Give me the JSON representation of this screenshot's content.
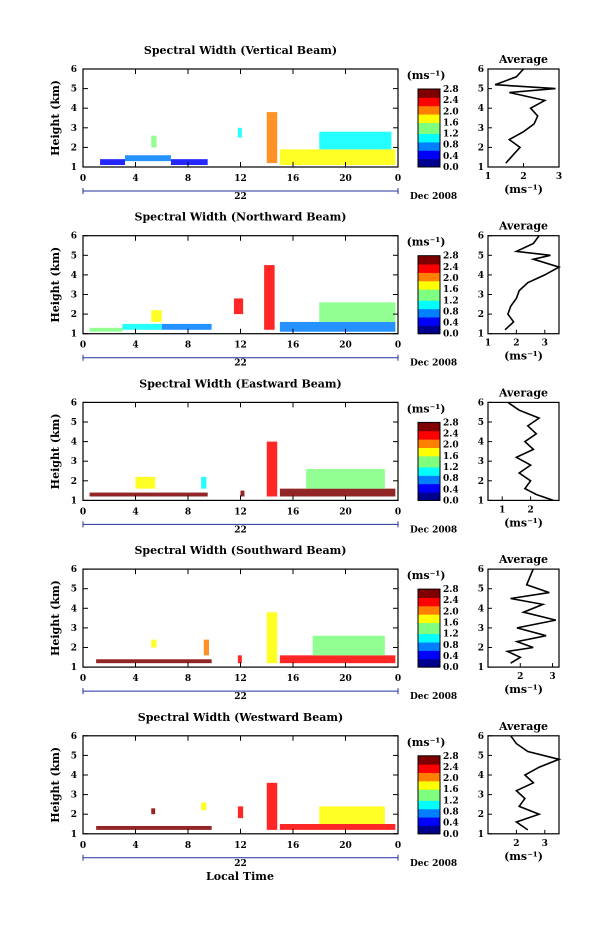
{
  "figure": {
    "xlabel": "Local Time",
    "date_label": "Dec 2008",
    "day_label": "22",
    "x_ticks": [
      "0",
      "4",
      "8",
      "12",
      "16",
      "20",
      "0"
    ],
    "y_ticks": [
      "1",
      "2",
      "3",
      "4",
      "5",
      "6"
    ],
    "ylabel": "Height (km)",
    "cbar_unit": "(ms⁻¹)",
    "cbar_ticks": [
      "0.0",
      "0.4",
      "0.8",
      "1.2",
      "1.6",
      "2.0",
      "2.4",
      "2.8"
    ],
    "avg_title": "Average",
    "avg_xlabel": "(ms⁻¹)",
    "colormap": [
      "#00008f",
      "#0000ff",
      "#007fff",
      "#00ffff",
      "#7fff7f",
      "#ffff00",
      "#ff7f00",
      "#ff0000",
      "#7f0000"
    ]
  },
  "chart_data": [
    {
      "type": "heatmap",
      "title": "Spectral Width (Vertical Beam)",
      "xlabel": "Local Time",
      "ylabel": "Height (km)",
      "xlim": [
        0,
        24
      ],
      "ylim": [
        1,
        6
      ],
      "zlim": [
        0,
        2.8
      ],
      "colorbar_label": "(ms⁻¹)",
      "blocks": [
        {
          "t": [
            1.3,
            3.2
          ],
          "h": [
            1.1,
            1.4
          ],
          "v": 0.5
        },
        {
          "t": [
            3.2,
            6.7
          ],
          "h": [
            1.3,
            1.6
          ],
          "v": 0.9
        },
        {
          "t": [
            6.7,
            9.5
          ],
          "h": [
            1.1,
            1.4
          ],
          "v": 0.5
        },
        {
          "t": [
            5.2,
            5.6
          ],
          "h": [
            2.0,
            2.6
          ],
          "v": 1.3
        },
        {
          "t": [
            11.8,
            12.1
          ],
          "h": [
            2.5,
            3.0
          ],
          "v": 1.2
        },
        {
          "t": [
            14.0,
            14.8
          ],
          "h": [
            1.2,
            3.8
          ],
          "v": 2.0
        },
        {
          "t": [
            15.0,
            23.8
          ],
          "h": [
            1.1,
            1.9
          ],
          "v": 1.6
        },
        {
          "t": [
            18.0,
            23.5
          ],
          "h": [
            1.9,
            2.8
          ],
          "v": 1.2
        }
      ],
      "average": {
        "xlim": [
          1,
          3
        ],
        "x_ticks": [
          "1",
          "2",
          "3"
        ],
        "height": [
          1.2,
          1.6,
          2.0,
          2.4,
          2.8,
          3.2,
          3.6,
          4.0,
          4.4,
          4.8,
          5.0,
          5.2,
          5.6,
          6.0
        ],
        "value": [
          1.5,
          1.7,
          1.9,
          1.6,
          2.0,
          2.3,
          2.4,
          2.2,
          2.6,
          1.6,
          2.9,
          1.2,
          1.8,
          2.0
        ]
      }
    },
    {
      "type": "heatmap",
      "title": "Spectral Width (Northward Beam)",
      "xlabel": "Local Time",
      "ylabel": "Height (km)",
      "xlim": [
        0,
        24
      ],
      "ylim": [
        1,
        6
      ],
      "zlim": [
        0,
        2.8
      ],
      "colorbar_label": "(ms⁻¹)",
      "blocks": [
        {
          "t": [
            0.5,
            3.0
          ],
          "h": [
            1.1,
            1.3
          ],
          "v": 1.4
        },
        {
          "t": [
            3.0,
            6.0
          ],
          "h": [
            1.2,
            1.5
          ],
          "v": 1.0
        },
        {
          "t": [
            5.2,
            6.0
          ],
          "h": [
            1.6,
            2.2
          ],
          "v": 1.8
        },
        {
          "t": [
            6.0,
            9.8
          ],
          "h": [
            1.2,
            1.5
          ],
          "v": 0.9
        },
        {
          "t": [
            11.5,
            12.2
          ],
          "h": [
            2.0,
            2.8
          ],
          "v": 2.2
        },
        {
          "t": [
            13.8,
            14.6
          ],
          "h": [
            1.2,
            4.5
          ],
          "v": 2.4
        },
        {
          "t": [
            15.0,
            23.8
          ],
          "h": [
            1.1,
            1.6
          ],
          "v": 0.7
        },
        {
          "t": [
            18.0,
            23.8
          ],
          "h": [
            1.6,
            2.6
          ],
          "v": 1.5
        }
      ],
      "average": {
        "xlim": [
          1,
          3.5
        ],
        "x_ticks": [
          "1",
          "2",
          "3"
        ],
        "height": [
          1.2,
          1.6,
          2.0,
          2.4,
          2.8,
          3.2,
          3.6,
          4.0,
          4.4,
          4.8,
          5.0,
          5.2,
          5.6,
          6.0
        ],
        "value": [
          1.6,
          1.9,
          1.7,
          1.8,
          2.0,
          2.1,
          2.4,
          3.0,
          3.5,
          2.6,
          3.2,
          2.0,
          2.6,
          2.8
        ]
      }
    },
    {
      "type": "heatmap",
      "title": "Spectral Width (Eastward Beam)",
      "xlabel": "Local Time",
      "ylabel": "Height (km)",
      "xlim": [
        0,
        24
      ],
      "ylim": [
        1,
        6
      ],
      "zlim": [
        0,
        2.8
      ],
      "colorbar_label": "(ms⁻¹)",
      "blocks": [
        {
          "t": [
            0.5,
            9.5
          ],
          "h": [
            1.2,
            1.4
          ],
          "v": 2.5
        },
        {
          "t": [
            4.0,
            5.5
          ],
          "h": [
            1.6,
            2.2
          ],
          "v": 1.6
        },
        {
          "t": [
            9.0,
            9.4
          ],
          "h": [
            1.6,
            2.2
          ],
          "v": 1.2
        },
        {
          "t": [
            12.0,
            12.3
          ],
          "h": [
            1.2,
            1.5
          ],
          "v": 2.6
        },
        {
          "t": [
            14.0,
            14.8
          ],
          "h": [
            1.2,
            4.0
          ],
          "v": 2.3
        },
        {
          "t": [
            15.0,
            23.8
          ],
          "h": [
            1.2,
            1.6
          ],
          "v": 2.5
        },
        {
          "t": [
            17.0,
            23.0
          ],
          "h": [
            1.6,
            2.6
          ],
          "v": 1.3
        }
      ],
      "average": {
        "xlim": [
          0.5,
          3
        ],
        "x_ticks": [
          "1",
          "2"
        ],
        "height": [
          1.0,
          1.3,
          1.6,
          2.0,
          2.4,
          2.8,
          3.2,
          3.6,
          4.0,
          4.4,
          4.8,
          5.2,
          5.6,
          6.0
        ],
        "value": [
          2.8,
          2.2,
          1.8,
          2.0,
          1.6,
          2.0,
          1.5,
          2.1,
          1.8,
          2.2,
          1.9,
          2.3,
          1.6,
          1.2
        ]
      }
    },
    {
      "type": "heatmap",
      "title": "Spectral Width (Southward Beam)",
      "xlabel": "Local Time",
      "ylabel": "Height (km)",
      "xlim": [
        0,
        24
      ],
      "ylim": [
        1,
        6
      ],
      "zlim": [
        0,
        2.8
      ],
      "colorbar_label": "(ms⁻¹)",
      "blocks": [
        {
          "t": [
            1.0,
            9.8
          ],
          "h": [
            1.2,
            1.4
          ],
          "v": 2.5
        },
        {
          "t": [
            5.2,
            5.6
          ],
          "h": [
            2.0,
            2.4
          ],
          "v": 1.7
        },
        {
          "t": [
            9.2,
            9.6
          ],
          "h": [
            1.6,
            2.4
          ],
          "v": 1.9
        },
        {
          "t": [
            11.8,
            12.1
          ],
          "h": [
            1.2,
            1.6
          ],
          "v": 2.4
        },
        {
          "t": [
            14.0,
            14.8
          ],
          "h": [
            1.2,
            3.8
          ],
          "v": 1.8
        },
        {
          "t": [
            15.0,
            23.8
          ],
          "h": [
            1.2,
            1.6
          ],
          "v": 2.2
        },
        {
          "t": [
            17.5,
            23.0
          ],
          "h": [
            1.6,
            2.6
          ],
          "v": 1.4
        }
      ],
      "average": {
        "xlim": [
          1,
          3.2
        ],
        "x_ticks": [
          "2",
          "3"
        ],
        "height": [
          1.2,
          1.5,
          1.8,
          2.0,
          2.3,
          2.6,
          3.0,
          3.4,
          3.8,
          4.2,
          4.5,
          4.8,
          5.2,
          6.0
        ],
        "value": [
          1.7,
          2.0,
          1.6,
          2.4,
          1.9,
          2.8,
          1.9,
          3.1,
          2.1,
          2.7,
          1.7,
          2.9,
          2.2,
          2.4
        ]
      }
    },
    {
      "type": "heatmap",
      "title": "Spectral Width (Westward Beam)",
      "xlabel": "Local Time",
      "ylabel": "Height (km)",
      "xlim": [
        0,
        24
      ],
      "ylim": [
        1,
        6
      ],
      "zlim": [
        0,
        2.8
      ],
      "colorbar_label": "(ms⁻¹)",
      "blocks": [
        {
          "t": [
            1.0,
            9.8
          ],
          "h": [
            1.2,
            1.4
          ],
          "v": 2.5
        },
        {
          "t": [
            5.2,
            5.5
          ],
          "h": [
            2.0,
            2.3
          ],
          "v": 2.7
        },
        {
          "t": [
            9.0,
            9.4
          ],
          "h": [
            2.2,
            2.6
          ],
          "v": 1.6
        },
        {
          "t": [
            11.8,
            12.2
          ],
          "h": [
            1.8,
            2.4
          ],
          "v": 2.4
        },
        {
          "t": [
            14.0,
            14.8
          ],
          "h": [
            1.2,
            3.6
          ],
          "v": 2.2
        },
        {
          "t": [
            15.0,
            23.8
          ],
          "h": [
            1.2,
            1.5
          ],
          "v": 2.4
        },
        {
          "t": [
            18.0,
            23.0
          ],
          "h": [
            1.5,
            2.4
          ],
          "v": 1.6
        }
      ],
      "average": {
        "xlim": [
          1,
          3.5
        ],
        "x_ticks": [
          "2",
          "3"
        ],
        "height": [
          1.2,
          1.6,
          2.0,
          2.4,
          2.8,
          3.2,
          3.6,
          4.0,
          4.4,
          4.8,
          5.2,
          5.6,
          6.0
        ],
        "value": [
          2.4,
          2.0,
          2.8,
          2.1,
          2.3,
          2.0,
          2.6,
          2.3,
          2.8,
          3.5,
          2.4,
          2.0,
          1.8
        ]
      }
    }
  ]
}
